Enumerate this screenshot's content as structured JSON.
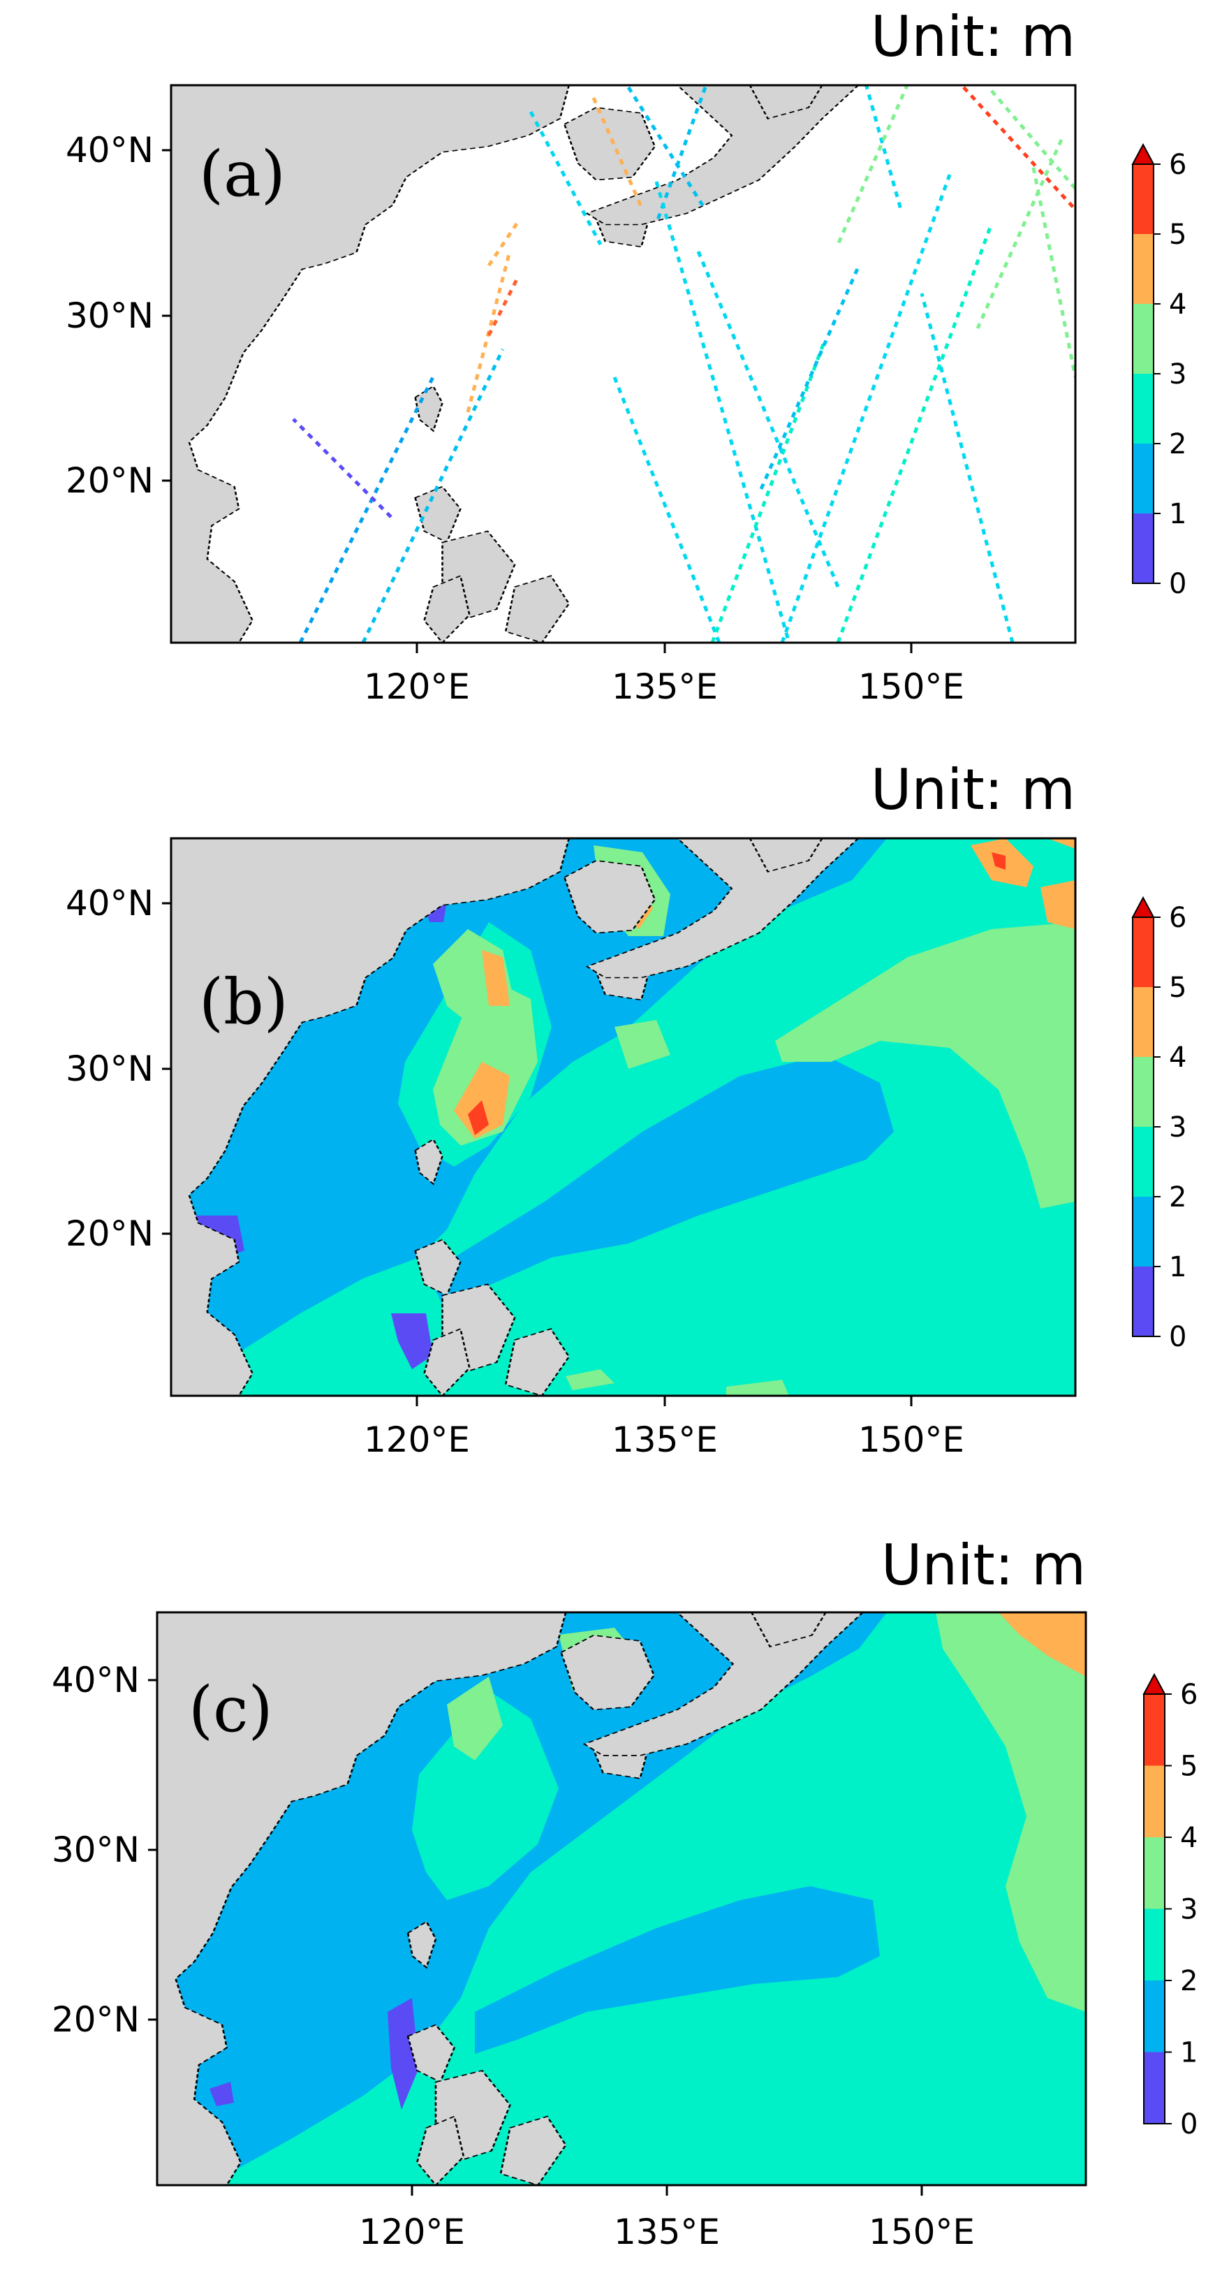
{
  "panels": [
    {
      "id": "a",
      "label": "(a)",
      "unit": "Unit: m"
    },
    {
      "id": "b",
      "label": "(b)",
      "unit": "Unit: m"
    },
    {
      "id": "c",
      "label": "(c)",
      "unit": "Unit: m"
    }
  ],
  "axes": {
    "lat_ticks": [
      "40°N",
      "30°N",
      "20°N"
    ],
    "lon_ticks": [
      "120°E",
      "135°E",
      "150°E"
    ]
  },
  "colorbar": {
    "ticks": [
      "6",
      "5",
      "4",
      "3",
      "2",
      "1",
      "0"
    ],
    "levels": [
      0,
      1,
      2,
      3,
      4,
      5,
      6
    ],
    "extend": "max",
    "colors": [
      "#5b4bf5",
      "#00b2f0",
      "#00f0c8",
      "#80f090",
      "#ffb050",
      "#ff4020",
      "#e00000"
    ]
  },
  "colors": {
    "land": "#d4d4d4",
    "coast": "#000000",
    "frame": "#000000"
  }
}
